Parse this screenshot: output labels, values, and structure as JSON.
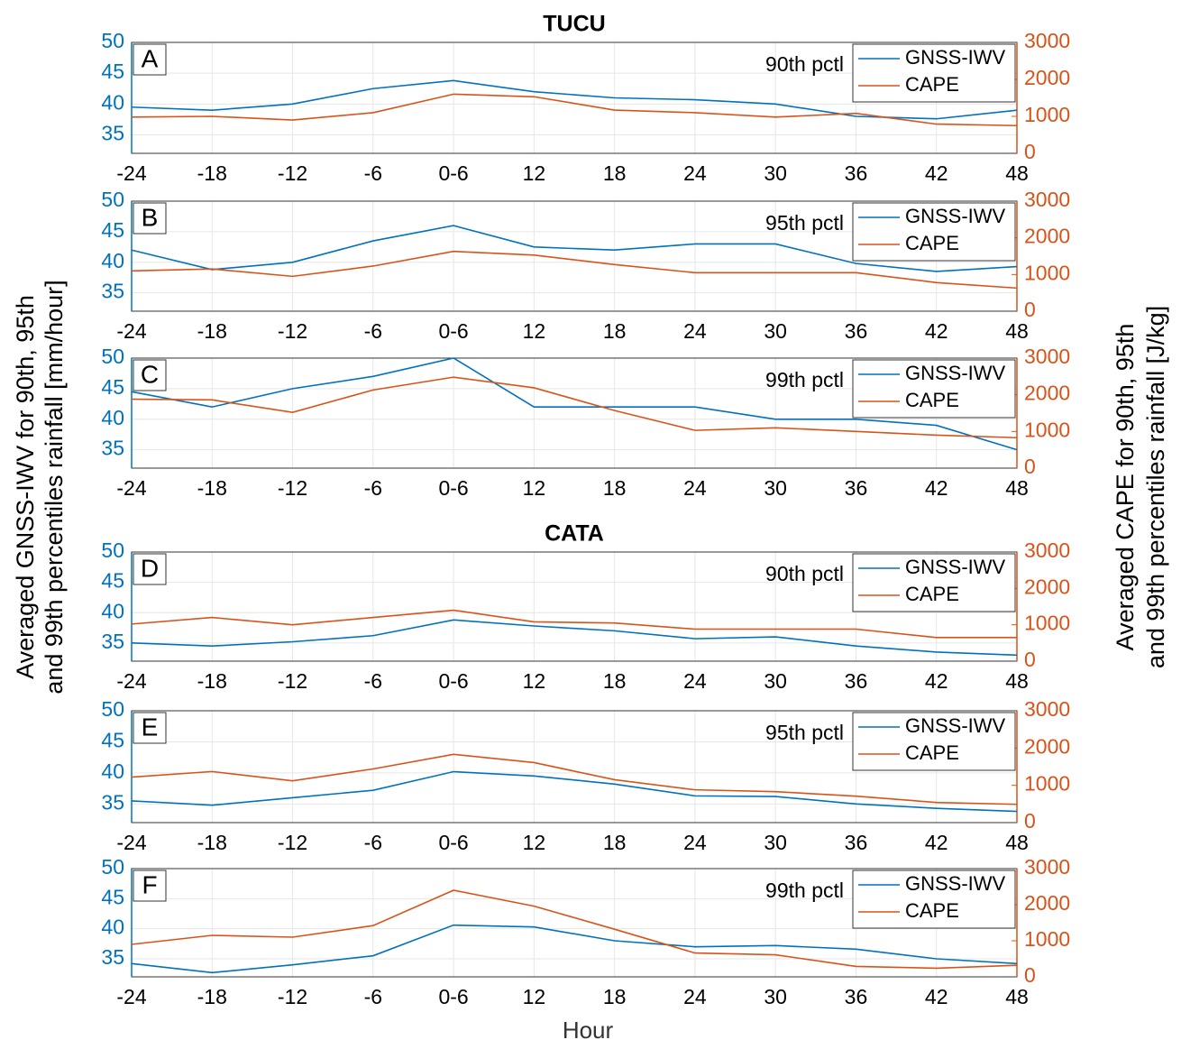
{
  "figure": {
    "ylabel": "Averaged GNSS-IWV for 90th, 95th",
    "ylabel2": "and 99th percentiles rainfall [mm/hour]",
    "y2label": "Averaged CAPE for 90th, 95th",
    "y2label2": "and 99th percentiles rainfall [J/kg]",
    "xlabel": "Hour"
  },
  "chart_data": [
    {
      "type": "line",
      "title": "TUCU",
      "label": "A",
      "annotation": "90th pctl",
      "categories": [
        "-24",
        "-18",
        "-12",
        "-6",
        "0-6",
        "12",
        "18",
        "24",
        "30",
        "36",
        "42",
        "48"
      ],
      "series": [
        {
          "name": "GNSS-IWV",
          "color": "#0072bd",
          "values": [
            39.5,
            39,
            40,
            42.5,
            43.8,
            42,
            41,
            40.7,
            40,
            38,
            37.6,
            39
          ]
        },
        {
          "name": "CAPE",
          "color": "#d95319",
          "axis": "y2",
          "values": [
            980,
            1000,
            900,
            1100,
            1600,
            1530,
            1170,
            1100,
            980,
            1080,
            790,
            750
          ]
        }
      ],
      "ylim": [
        32,
        50
      ],
      "yticks": [
        35,
        40,
        45,
        50
      ],
      "y2lim": [
        0,
        3000
      ],
      "y2ticks": [
        0,
        1000,
        2000,
        3000
      ],
      "grid": true,
      "legend": "upper right"
    },
    {
      "type": "line",
      "label": "B",
      "annotation": "95th pctl",
      "categories": [
        "-24",
        "-18",
        "-12",
        "-6",
        "0-6",
        "12",
        "18",
        "24",
        "30",
        "36",
        "42",
        "48"
      ],
      "series": [
        {
          "name": "GNSS-IWV",
          "color": "#0072bd",
          "values": [
            42,
            38.8,
            40,
            43.5,
            46,
            42.5,
            42,
            43,
            43,
            39.8,
            38.5,
            39.3
          ]
        },
        {
          "name": "CAPE",
          "color": "#d95319",
          "axis": "y2",
          "values": [
            1100,
            1150,
            950,
            1230,
            1630,
            1530,
            1270,
            1050,
            1050,
            1050,
            780,
            630
          ]
        }
      ],
      "ylim": [
        32,
        50
      ],
      "yticks": [
        35,
        40,
        45,
        50
      ],
      "y2lim": [
        0,
        3000
      ],
      "y2ticks": [
        0,
        1000,
        2000,
        3000
      ],
      "grid": true,
      "legend": "upper right"
    },
    {
      "type": "line",
      "label": "C",
      "annotation": "99th pctl",
      "categories": [
        "-24",
        "-18",
        "-12",
        "-6",
        "0-6",
        "12",
        "18",
        "24",
        "30",
        "36",
        "42",
        "48"
      ],
      "series": [
        {
          "name": "GNSS-IWV",
          "color": "#0072bd",
          "values": [
            44.5,
            42,
            45,
            47,
            50,
            42,
            42,
            42,
            40,
            40,
            39,
            35
          ]
        },
        {
          "name": "CAPE",
          "color": "#d95319",
          "axis": "y2",
          "values": [
            1880,
            1860,
            1520,
            2130,
            2480,
            2190,
            1570,
            1030,
            1100,
            1000,
            900,
            830
          ]
        }
      ],
      "ylim": [
        32,
        50
      ],
      "yticks": [
        35,
        40,
        45,
        50
      ],
      "y2lim": [
        0,
        3000
      ],
      "y2ticks": [
        0,
        1000,
        2000,
        3000
      ],
      "grid": true,
      "legend": "upper right"
    },
    {
      "type": "line",
      "title": "CATA",
      "label": "D",
      "annotation": "90th pctl",
      "categories": [
        "-24",
        "-18",
        "-12",
        "-6",
        "0-6",
        "12",
        "18",
        "24",
        "30",
        "36",
        "42",
        "48"
      ],
      "series": [
        {
          "name": "GNSS-IWV",
          "color": "#0072bd",
          "values": [
            35,
            34.5,
            35.2,
            36.2,
            38.8,
            37.8,
            37,
            35.7,
            36,
            34.5,
            33.5,
            33
          ]
        },
        {
          "name": "CAPE",
          "color": "#d95319",
          "axis": "y2",
          "values": [
            1020,
            1200,
            1000,
            1200,
            1400,
            1080,
            1050,
            880,
            880,
            880,
            650,
            650
          ]
        }
      ],
      "ylim": [
        32,
        50
      ],
      "yticks": [
        35,
        40,
        45,
        50
      ],
      "y2lim": [
        0,
        3000
      ],
      "y2ticks": [
        0,
        1000,
        2000,
        3000
      ],
      "grid": true,
      "legend": "upper right"
    },
    {
      "type": "line",
      "label": "E",
      "annotation": "95th pctl",
      "categories": [
        "-24",
        "-18",
        "-12",
        "-6",
        "0-6",
        "12",
        "18",
        "24",
        "30",
        "36",
        "42",
        "48"
      ],
      "series": [
        {
          "name": "GNSS-IWV",
          "color": "#0072bd",
          "values": [
            35.5,
            34.8,
            36,
            37.2,
            40.2,
            39.5,
            38.2,
            36.3,
            36.2,
            35,
            34.3,
            33.8
          ]
        },
        {
          "name": "CAPE",
          "color": "#d95319",
          "axis": "y2",
          "values": [
            1220,
            1370,
            1120,
            1440,
            1830,
            1610,
            1150,
            880,
            830,
            710,
            540,
            490
          ]
        }
      ],
      "ylim": [
        32,
        50
      ],
      "yticks": [
        35,
        40,
        45,
        50
      ],
      "y2lim": [
        0,
        3000
      ],
      "y2ticks": [
        0,
        1000,
        2000,
        3000
      ],
      "grid": true,
      "legend": "upper right"
    },
    {
      "type": "line",
      "label": "F",
      "annotation": "99th pctl",
      "categories": [
        "-24",
        "-18",
        "-12",
        "-6",
        "0-6",
        "12",
        "18",
        "24",
        "30",
        "36",
        "42",
        "48"
      ],
      "series": [
        {
          "name": "GNSS-IWV",
          "color": "#0072bd",
          "values": [
            34.2,
            32.7,
            34,
            35.5,
            40.6,
            40.3,
            38,
            37,
            37.2,
            36.6,
            35,
            34.2
          ]
        },
        {
          "name": "CAPE",
          "color": "#d95319",
          "axis": "y2",
          "values": [
            900,
            1150,
            1100,
            1420,
            2400,
            1960,
            1320,
            660,
            610,
            290,
            240,
            320
          ]
        }
      ],
      "ylim": [
        32,
        50
      ],
      "yticks": [
        35,
        40,
        45,
        50
      ],
      "y2lim": [
        0,
        3000
      ],
      "y2ticks": [
        0,
        1000,
        2000,
        3000
      ],
      "grid": true,
      "legend": "upper right"
    }
  ]
}
